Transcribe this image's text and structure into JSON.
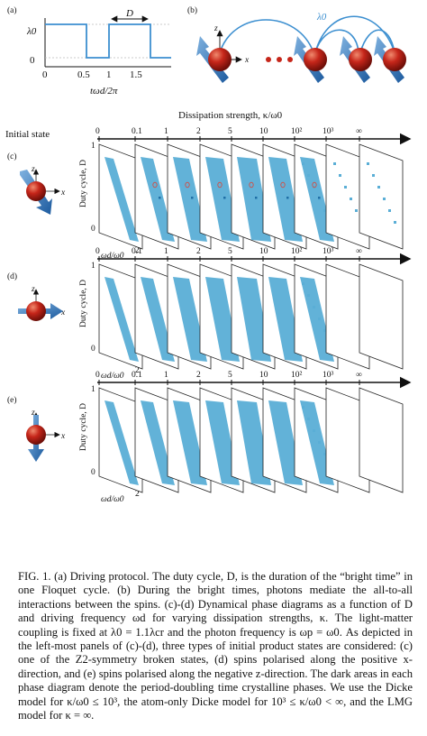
{
  "panel_labels": {
    "a": "(a)",
    "b": "(b)",
    "c": "(c)",
    "d": "(d)",
    "e": "(e)"
  },
  "panel_a": {
    "y_top": "λ0",
    "y_zero": "0",
    "x_ticks": [
      "0",
      "0.5",
      "1",
      "1.5"
    ],
    "xlabel": "tωd/2π",
    "d_label": "D"
  },
  "panel_b": {
    "lambda_label": "λ0",
    "axis_z": "z",
    "axis_x": "x"
  },
  "header": {
    "title": "Dissipation strength, κ/ω0",
    "ticks": [
      "0",
      "0.1",
      "1",
      "2",
      "5",
      "10",
      "10²",
      "10³",
      "∞"
    ],
    "initial_state": "Initial state"
  },
  "diagram_axes": {
    "ylabel": "Duty cycle, D",
    "y_one": "1",
    "y_zero": "0",
    "xlabel": "ωd/ω0",
    "x_tick": "2"
  },
  "colors": {
    "phase": "#5aaed6",
    "arrow": "#2c6cb0",
    "sphere": "#c6261a",
    "dark": "#1f6fa6",
    "marker": "#d9473a"
  },
  "caption": {
    "text": "FIG. 1. (a) Driving protocol. The duty cycle, D, is the duration of the “bright time” in one Floquet cycle. (b) During the bright times, photons mediate the all-to-all interactions between the spins. (c)-(d) Dynamical phase diagrams as a function of D and driving frequency ωd for varying dissipation strengths, κ. The light-matter coupling is fixed at λ0 = 1.1λcr and the photon frequency is ωp = ω0. As depicted in the left-most panels of (c)-(d), three types of initial product states are considered: (c) one of the Z2-symmetry broken states, (d) spins polarised along the positive x-direction, and (e) spins polarised along the negative z-direction. The dark areas in each phase diagram denote the period-doubling time crystalline phases. We use the Dicke model for κ/ω0 ≤ 10³, the atom-only Dicke model for 10³ ≤ κ/ω0 < ∞, and the LMG model for κ = ∞."
  }
}
